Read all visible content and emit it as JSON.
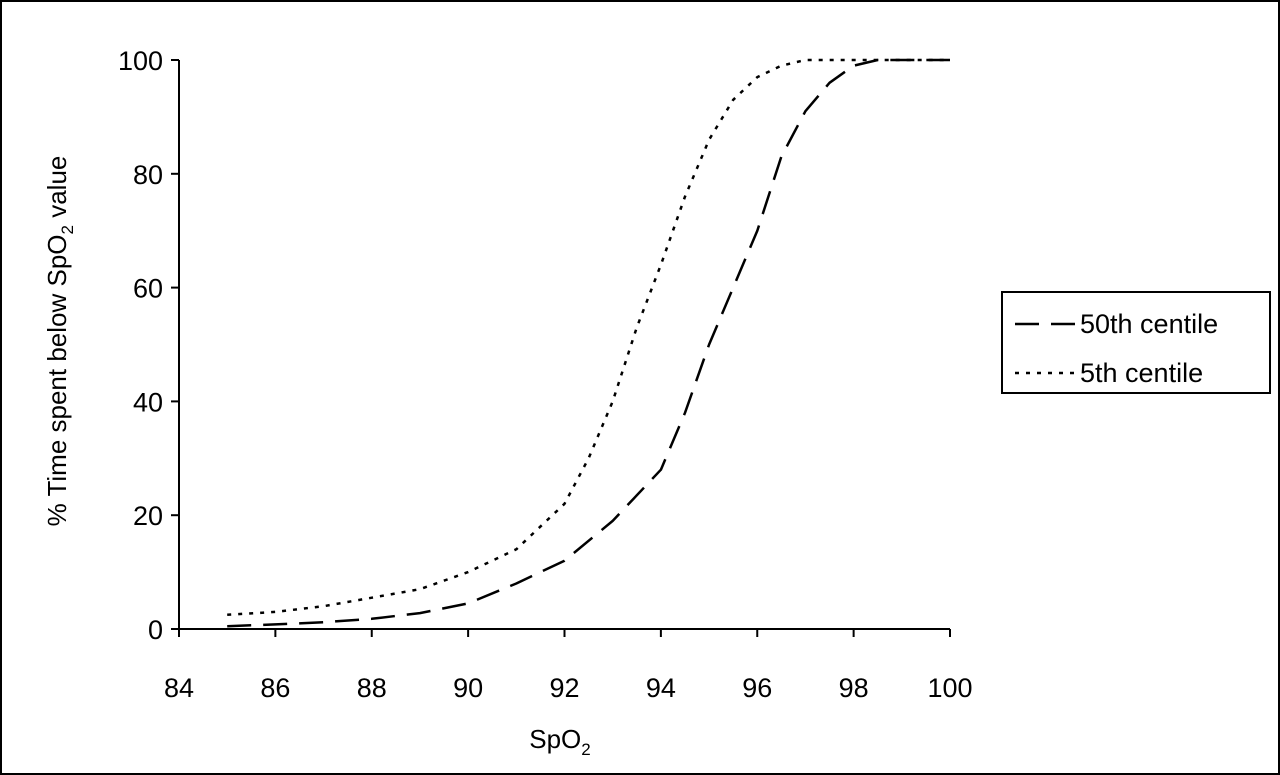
{
  "chart_data": {
    "type": "line",
    "xlabel": "SpO2",
    "ylabel": "% Time spent below SpO2 value",
    "xlim": [
      84,
      100
    ],
    "ylim": [
      0,
      100
    ],
    "x_ticks": [
      "84",
      "86",
      "88",
      "90",
      "92",
      "94",
      "96",
      "98",
      "100"
    ],
    "y_ticks": [
      "0",
      "20",
      "40",
      "60",
      "80",
      "100"
    ],
    "grid": false,
    "legend_position": "right",
    "series": [
      {
        "name": "50th centile",
        "style": "dashed",
        "color": "#000000",
        "x": [
          85,
          86,
          87,
          88,
          89,
          90,
          91,
          92,
          93,
          94,
          94.5,
          95,
          95.5,
          96,
          96.5,
          97,
          97.5,
          98,
          98.5,
          99,
          100
        ],
        "y": [
          0.5,
          0.8,
          1.2,
          1.8,
          2.8,
          4.5,
          8,
          12,
          19,
          28,
          38,
          50,
          60,
          70,
          83,
          91,
          96,
          99,
          100,
          100,
          100
        ]
      },
      {
        "name": "5th centile",
        "style": "dotted",
        "color": "#000000",
        "x": [
          85,
          86,
          87,
          88,
          89,
          90,
          91,
          92,
          92.5,
          93,
          93.5,
          94,
          94.5,
          95,
          95.5,
          96,
          96.5,
          97,
          97.5,
          98,
          99,
          100
        ],
        "y": [
          2.5,
          3,
          4,
          5.5,
          7,
          10,
          14,
          22,
          30,
          40,
          53,
          64,
          76,
          86,
          93,
          97,
          99,
          100,
          100,
          100,
          100,
          100
        ]
      }
    ]
  }
}
